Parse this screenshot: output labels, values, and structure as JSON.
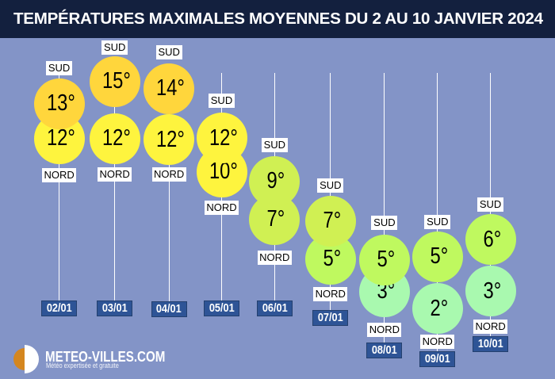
{
  "title": "TEMPÉRATURES MAXIMALES MOYENNES DU 2 AU 10 JANVIER 2024",
  "direction_labels": {
    "top": "SUD",
    "bottom": "NORD"
  },
  "columns": [
    {
      "date": "02/01",
      "sud": "13°",
      "nord": "12°"
    },
    {
      "date": "03/01",
      "sud": "15°",
      "nord": "12°"
    },
    {
      "date": "04/01",
      "sud": "14°",
      "nord": "12°"
    },
    {
      "date": "05/01",
      "sud": "12°",
      "nord": "10°"
    },
    {
      "date": "06/01",
      "sud": "9°",
      "nord": "7°"
    },
    {
      "date": "07/01",
      "sud": "7°",
      "nord": "5°"
    },
    {
      "date": "08/01",
      "sud": "5°",
      "nord": "3°"
    },
    {
      "date": "09/01",
      "sud": "5°",
      "nord": "2°"
    },
    {
      "date": "10/01",
      "sud": "6°",
      "nord": "3°"
    }
  ],
  "chart_data": {
    "type": "scatter",
    "title": "TEMPÉRATURES MAXIMALES MOYENNES DU 2 AU 10 JANVIER 2024",
    "categories": [
      "02/01",
      "03/01",
      "04/01",
      "05/01",
      "06/01",
      "07/01",
      "08/01",
      "09/01",
      "10/01"
    ],
    "series": [
      {
        "name": "SUD",
        "values": [
          13,
          15,
          14,
          12,
          9,
          7,
          5,
          5,
          6
        ]
      },
      {
        "name": "NORD",
        "values": [
          12,
          12,
          12,
          10,
          7,
          5,
          3,
          2,
          3
        ]
      }
    ],
    "unit": "°C",
    "legend_position": "per-point labels",
    "grid": false
  },
  "colors": {
    "background": "#8394C7",
    "title_bar": "#13203E",
    "date_box": "#2E5496",
    "band_gold": "#FFD63C",
    "band_lemon": "#FEF43E",
    "band_chartreuse": "#D0F053",
    "band_green": "#BFF95F",
    "band_mint": "#A9F9AF",
    "logo_orange": "#D4861F"
  },
  "logo": {
    "name": "METEO-VILLES.COM",
    "tagline": "Météo expertisée et gratuite"
  }
}
